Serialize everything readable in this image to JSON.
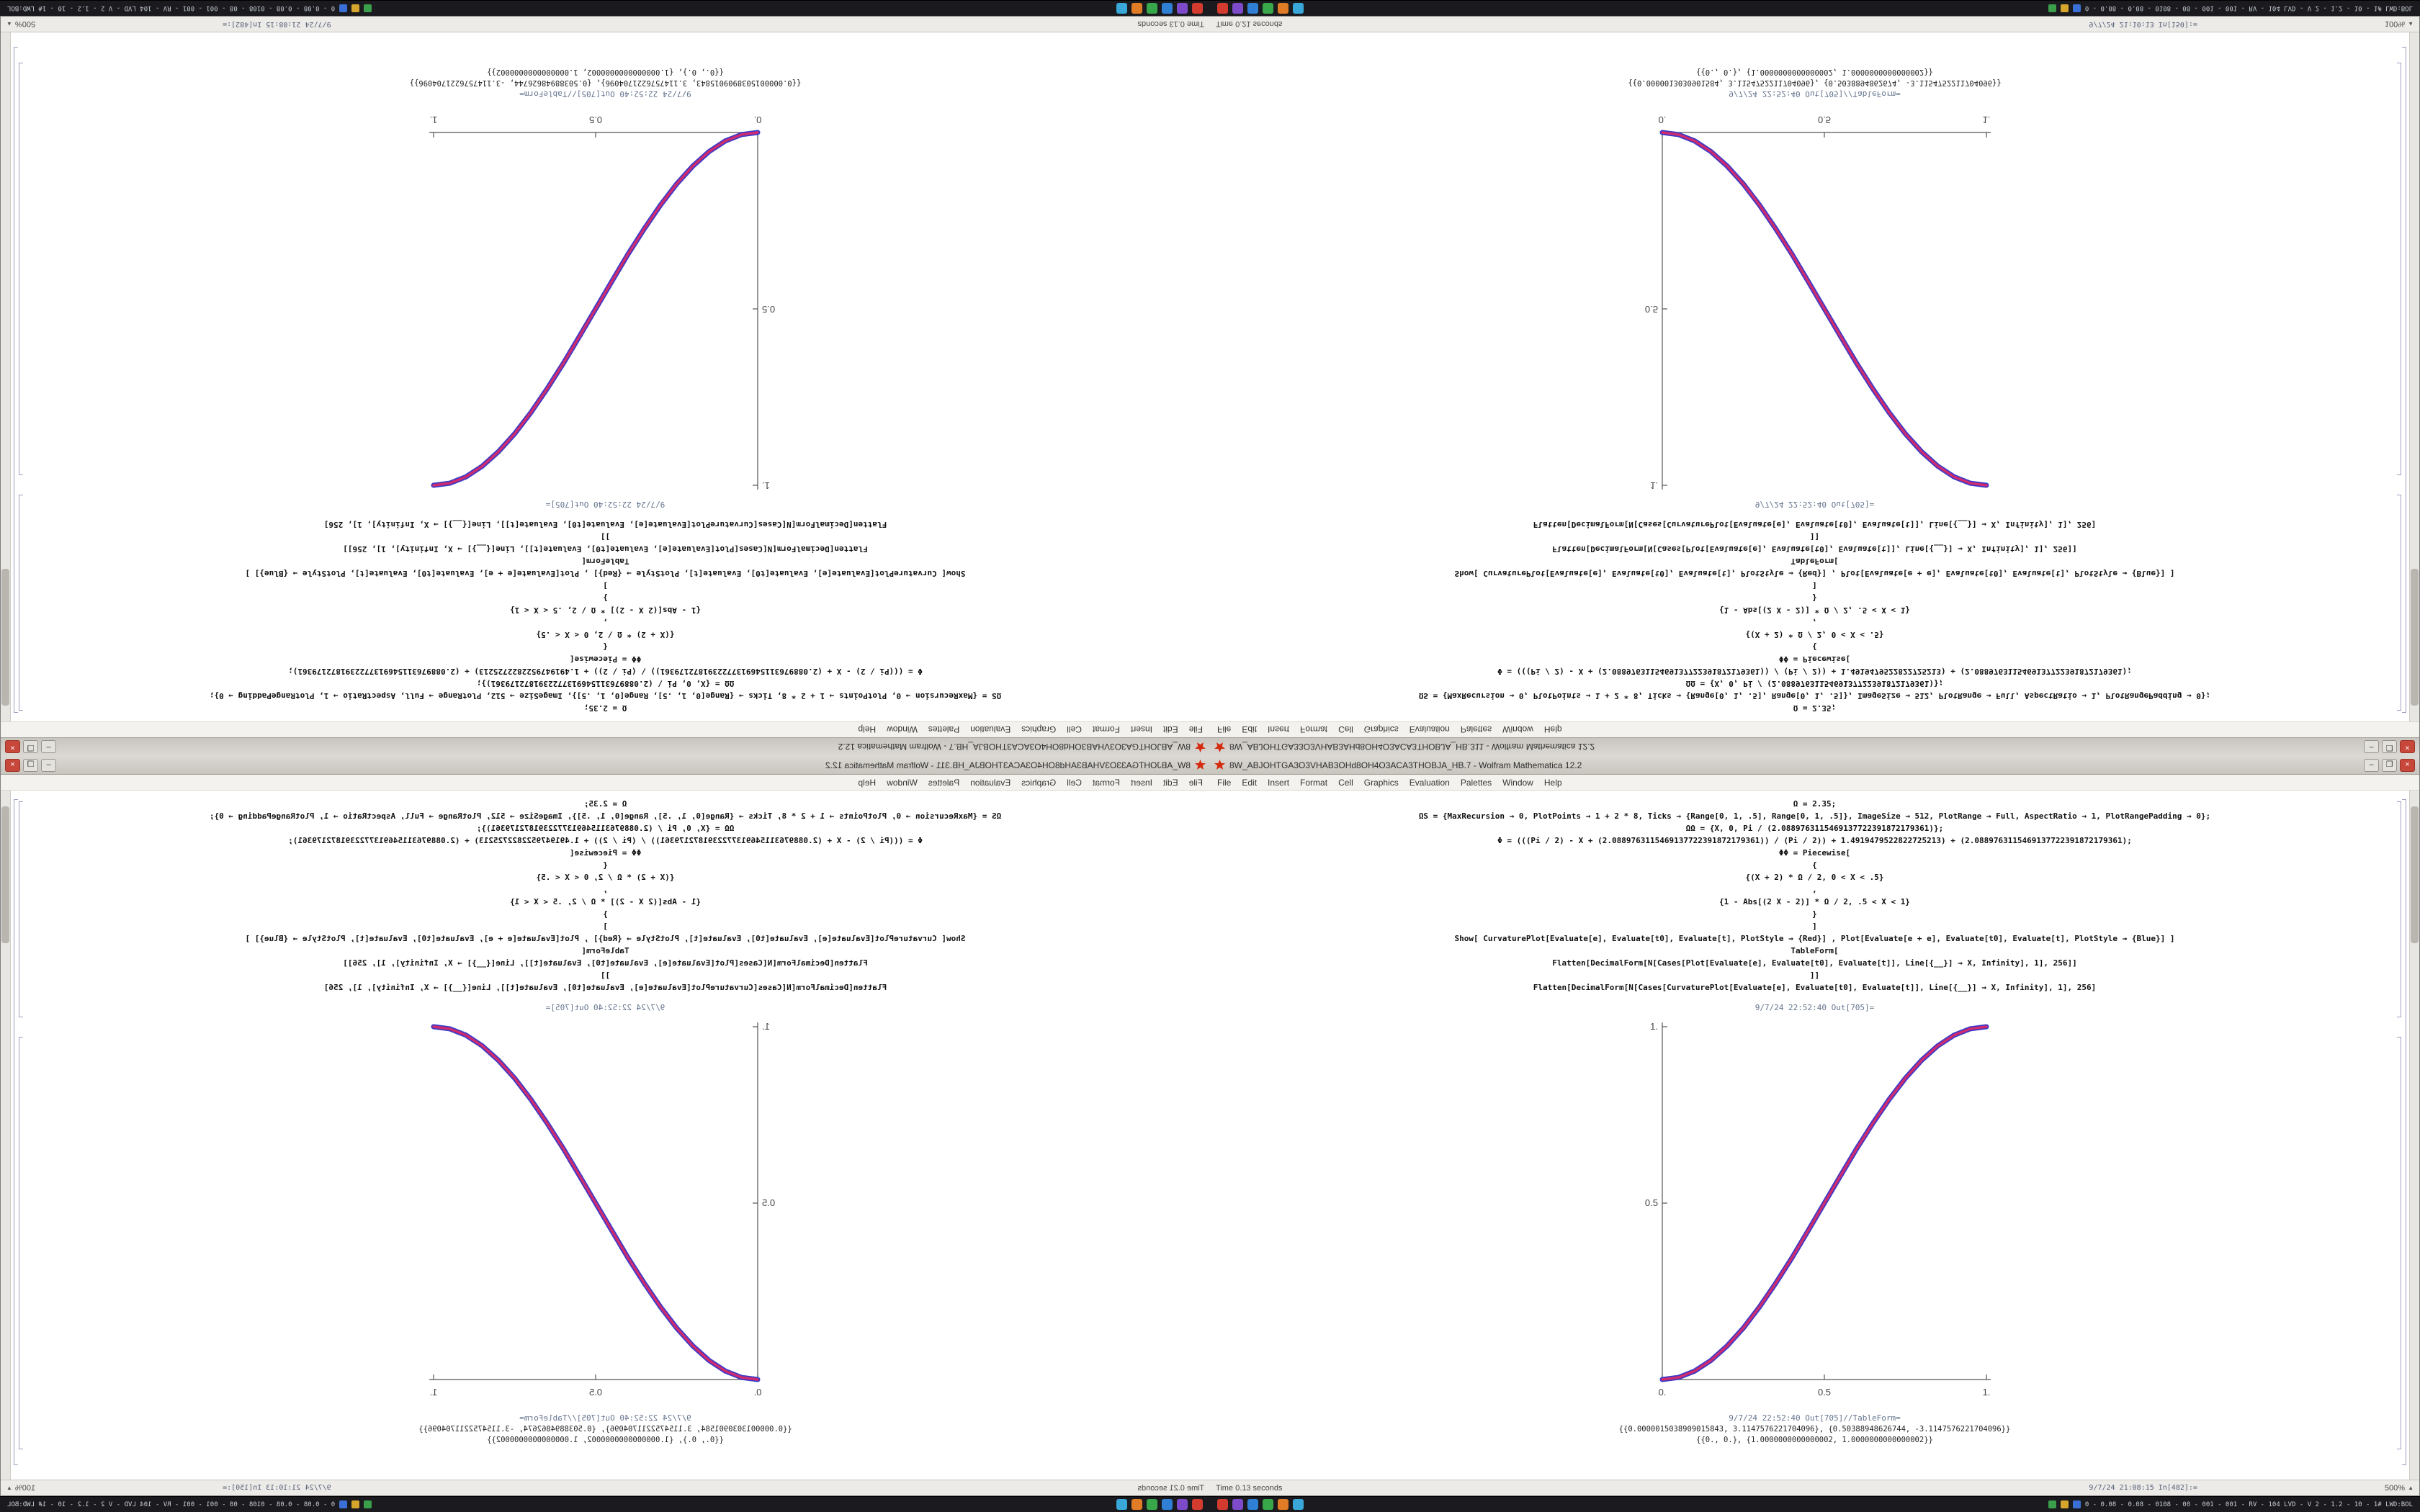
{
  "desktop": {
    "taskbar": {
      "app_icons": [
        {
          "name": "taskbar-icon-red",
          "color": "#d23b2e"
        },
        {
          "name": "taskbar-icon-purple",
          "color": "#7d4bc9"
        },
        {
          "name": "taskbar-icon-blue",
          "color": "#2f7fd4"
        },
        {
          "name": "taskbar-icon-green",
          "color": "#37a74a"
        },
        {
          "name": "taskbar-icon-orange",
          "color": "#e07b26"
        },
        {
          "name": "taskbar-icon-cyan",
          "color": "#39a8d8"
        }
      ],
      "tray_icons": [
        {
          "name": "tray-icon-green",
          "color": "#3a9e4a"
        },
        {
          "name": "tray-icon-amber",
          "color": "#d6a62c"
        },
        {
          "name": "tray-icon-blue",
          "color": "#3a6fd6"
        }
      ],
      "status_text": "0 - 0.08 - 0.08 - 0108 - 08 - 001 - 001 - RV - 104 LVD - V 2 - 1.2 - 10 - 1# LWD:BOL"
    }
  },
  "windows": {
    "a": {
      "title": "8W_ABJOHTGA3O3VHAB3OHd8OH4O3ACA3THOBJA_HB.7 - Wolfram Mathematica 12.2",
      "controls": {
        "minimize": "–",
        "maximize": "❐",
        "close": "×"
      },
      "menu": [
        "File",
        "Edit",
        "Insert",
        "Format",
        "Cell",
        "Graphics",
        "Evaluation",
        "Palettes",
        "Window",
        "Help"
      ],
      "cells": [
        "Ω = 2.35;",
        "ΩS = {MaxRecursion → 0, PlotPoints → 1 + 2 * 8, Ticks → {Range[0, 1, .5], Range[0, 1, .5]}, ImageSize → 512, PlotRange → Full, AspectRatio → 1, PlotRangePadding → 0};",
        "ΩΩ = {X, 0, Pi / (2.0889763115469137722391872179361)};",
        "Φ = (((Pi / 2) - X + (2.0889763115469137722391872179361)) / (Pi / 2)) + 1.4919479522822725213) + (2.0889763115469137722391872179361);",
        "ΦΦ = Piecewise[",
        "{",
        "{(X + 2) * Ω / 2, 0 < X < .5}",
        ",",
        "{1 - Abs[(2 X - 2)] * Ω / 2, .5 < X < 1}",
        "}",
        "]",
        "Show[  CurvaturePlot[Evaluate[e], Evaluate[t0], Evaluate[t], PlotStyle → {Red}]  ,  Plot[Evaluate[e + e], Evaluate[t0], Evaluate[t], PlotStyle → {Blue}]  ]",
        "TableForm[",
        "Flatten[DecimalForm[N[Cases[Plot[Evaluate[e], Evaluate[t0], Evaluate[t]], Line[{__}] → X, Infinity], 1], 256]]",
        "]]",
        "Flatten[DecimalForm[N[Cases[CurvaturePlot[Evaluate[e], Evaluate[t0], Evaluate[t]], Line[{__}] → X, Infinity], 1], 256]"
      ],
      "out1_label": "9/7/24 22:52:40 Out[705]=",
      "out2_label": "9/7/24 22:52:40 Out[705]//TableForm=",
      "out_values": [
        "{{0.0000015038909015843, 3.1147576221704096}, {0.50388948626744, -3.1147576221704096}}",
        "{{0., 0.}, {1.0000000000000002, 1.0000000000000002}}"
      ],
      "status": {
        "time": "Time 0.13 seconds",
        "cell_info": "9/7/24 21:08:15 In[482]:=",
        "zoom": "500%",
        "zoom_arrow": "▲"
      },
      "plot": {
        "type": "line",
        "title": "",
        "xlabel": "",
        "ylabel": "",
        "xlim": [
          0,
          1
        ],
        "ylim": [
          0,
          1
        ],
        "x_ticks": [
          "0.",
          "0.5",
          "1."
        ],
        "y_ticks": [
          "0.5",
          "1."
        ],
        "series": [
          {
            "name": "Plot (Blue)",
            "color": "#3a3ac8",
            "width": 7
          },
          {
            "name": "CurvaturePlot (Red)",
            "color": "#cf2b6e",
            "width": 3.5
          }
        ],
        "points": [
          [
            0,
            0
          ],
          [
            0.05,
            0.006
          ],
          [
            0.1,
            0.024
          ],
          [
            0.15,
            0.054
          ],
          [
            0.2,
            0.095
          ],
          [
            0.25,
            0.146
          ],
          [
            0.3,
            0.206
          ],
          [
            0.35,
            0.273
          ],
          [
            0.4,
            0.345
          ],
          [
            0.45,
            0.422
          ],
          [
            0.5,
            0.5
          ],
          [
            0.55,
            0.578
          ],
          [
            0.6,
            0.655
          ],
          [
            0.65,
            0.727
          ],
          [
            0.7,
            0.794
          ],
          [
            0.75,
            0.854
          ],
          [
            0.8,
            0.905
          ],
          [
            0.85,
            0.946
          ],
          [
            0.9,
            0.976
          ],
          [
            0.95,
            0.994
          ],
          [
            1,
            1
          ]
        ]
      }
    },
    "b": {
      "title": "8W_ABJOHTGA33O3VHAB3AHd8OH4O3ACA3THOBJA_HB.311 - Wolfram Mathematica 12.2",
      "controls": {
        "minimize": "–",
        "maximize": "❐",
        "close": "×"
      },
      "menu": [
        "File",
        "Edit",
        "Insert",
        "Format",
        "Cell",
        "Graphics",
        "Evaluation",
        "Palettes",
        "Window",
        "Help"
      ],
      "cells": [
        "Ω = 2.35;",
        "ΩS = {MaxRecursion → 0, PlotPoints → 1 + 2 * 8, Ticks → {Range[0, 1, .5], Range[0, 1, .5]}, ImageSize → 512, PlotRange → Full, AspectRatio → 1, PlotRangePadding → 0};",
        "ΩΩ = {X, 0, Pi / (2.0889763115469137722391872179361)};",
        "Φ = (((Pi / 2) - X + (2.0889763115469137722391872179361)) / (Pi / 2)) + 1.4919479522822725213) + (2.0889763115469137722391872179361);",
        "ΦΦ = Piecewise[",
        "{",
        "{(X + 2) * Ω / 2, 0 < X < .5}",
        ",",
        "{1 - Abs[(2 X - 2)] * Ω / 2, .5 < X < 1}",
        "}",
        "]",
        "Show[  CurvaturePlot[Evaluate[e], Evaluate[t0], Evaluate[t], PlotStyle → {Red}]  ,  Plot[Evaluate[e + e], Evaluate[t0], Evaluate[t], PlotStyle → {Blue}]  ]",
        "TableForm[",
        "Flatten[DecimalForm[N[Cases[Plot[Evaluate[e], Evaluate[t0], Evaluate[t]], Line[{__}] → X, Infinity], 1], 256]]",
        "]]",
        "Flatten[DecimalForm[N[Cases[CurvaturePlot[Evaluate[e], Evaluate[t0], Evaluate[t]], Line[{__}] → X, Infinity], 1], 256]"
      ],
      "out1_label": "9/7/24 22:52:40 Out[705]=",
      "out2_label": "9/7/24 22:52:40 Out[705]//TableForm=",
      "out_values": [
        "{{0.0000013030901584, 3.1154752211704096}, {0.5038894862674, -3.1154752211704096}}",
        "{{0., 0.}, {1.0000000000000002, 1.0000000000000002}}"
      ],
      "status": {
        "time": "Time 0.21 seconds",
        "cell_info": "9/7/24 21:10:13 In[150]:=",
        "zoom": "100%",
        "zoom_arrow": "▲"
      },
      "plot": {
        "type": "line",
        "title": "",
        "xlabel": "",
        "ylabel": "",
        "xlim": [
          0,
          1
        ],
        "ylim": [
          0,
          1
        ],
        "x_ticks": [
          "0.",
          "0.5",
          "1."
        ],
        "y_ticks": [
          "0.5",
          "1."
        ],
        "series": [
          {
            "name": "Plot (Blue)",
            "color": "#3a3ac8",
            "width": 7
          },
          {
            "name": "CurvaturePlot (Red)",
            "color": "#cf2b6e",
            "width": 3.5
          }
        ],
        "points": [
          [
            0,
            0
          ],
          [
            0.05,
            0.006
          ],
          [
            0.1,
            0.024
          ],
          [
            0.15,
            0.054
          ],
          [
            0.2,
            0.095
          ],
          [
            0.25,
            0.146
          ],
          [
            0.3,
            0.206
          ],
          [
            0.35,
            0.273
          ],
          [
            0.4,
            0.345
          ],
          [
            0.45,
            0.422
          ],
          [
            0.5,
            0.5
          ],
          [
            0.55,
            0.578
          ],
          [
            0.6,
            0.655
          ],
          [
            0.65,
            0.727
          ],
          [
            0.7,
            0.794
          ],
          [
            0.75,
            0.854
          ],
          [
            0.8,
            0.905
          ],
          [
            0.85,
            0.946
          ],
          [
            0.9,
            0.976
          ],
          [
            0.95,
            0.994
          ],
          [
            1,
            1
          ]
        ]
      }
    }
  }
}
